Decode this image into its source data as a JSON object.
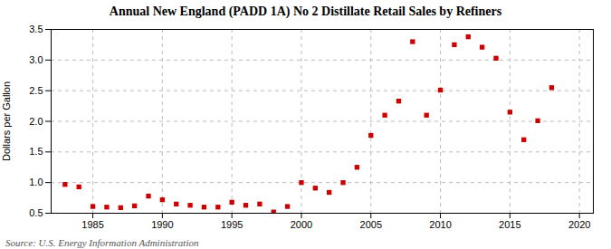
{
  "chart_data": {
    "type": "scatter",
    "title": "Annual New England (PADD 1A) No 2 Distillate Retail Sales by Refiners",
    "ylabel": "Dollars per Gallon",
    "source": "Source: U.S. Energy Information Administration",
    "x": [
      1983,
      1984,
      1985,
      1986,
      1987,
      1988,
      1989,
      1990,
      1991,
      1992,
      1993,
      1994,
      1995,
      1996,
      1997,
      1998,
      1999,
      2000,
      2001,
      2002,
      2003,
      2004,
      2005,
      2006,
      2007,
      2008,
      2009,
      2010,
      2011,
      2012,
      2013,
      2014,
      2015,
      2016,
      2017,
      2018
    ],
    "values": [
      0.97,
      0.93,
      0.61,
      0.6,
      0.59,
      0.62,
      0.78,
      0.72,
      0.65,
      0.63,
      0.6,
      0.6,
      0.68,
      0.63,
      0.65,
      0.52,
      0.61,
      1.0,
      0.91,
      0.84,
      1.0,
      1.25,
      1.77,
      2.1,
      2.33,
      3.3,
      2.1,
      2.51,
      3.25,
      3.38,
      3.21,
      3.03,
      2.15,
      1.7,
      2.01,
      2.55
    ],
    "color": "#cc0000",
    "marker": "square",
    "xlim": [
      1982,
      2021
    ],
    "ylim": [
      0.5,
      3.5
    ],
    "xticks": [
      1985,
      1990,
      1995,
      2000,
      2005,
      2010,
      2015,
      2020
    ],
    "yticks": [
      0.5,
      {
        "value": 1.0,
        "label": "1.0"
      },
      1.5,
      {
        "value": 2.0,
        "label": "2.0"
      },
      2.5,
      {
        "value": 3.0,
        "label": "3.0"
      },
      3.5
    ],
    "grid": true
  }
}
